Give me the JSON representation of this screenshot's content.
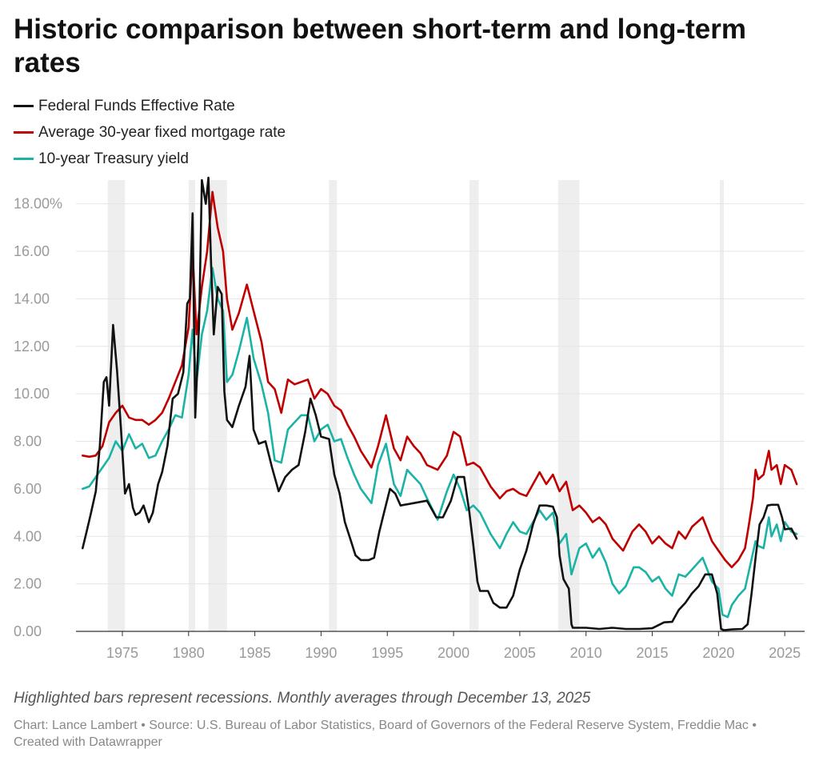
{
  "title": "Historic comparison between short-term and long-term rates",
  "notes": "Highlighted bars represent recessions. Monthly averages through December 13, 2025",
  "credits": "Chart: Lance Lambert • Source: U.S. Bureau of Labor Statistics, Board of Governors of the Federal Reserve System, Freddie Mac • Created with Datawrapper",
  "colors": {
    "fed_funds": "#111111",
    "mortgage": "#c00000",
    "treasury": "#1ab3a6",
    "recession": "#eeeeee",
    "grid": "#e5e5e5"
  },
  "chart_data": {
    "type": "line",
    "title": "Historic comparison between short-term and long-term rates",
    "xlabel": "",
    "ylabel": "",
    "xlim": [
      1971.5,
      2026.5
    ],
    "ylim": [
      0,
      19
    ],
    "y_ticks": [
      0,
      2,
      4,
      6,
      8,
      10,
      12,
      14,
      16,
      18
    ],
    "y_tick_labels": [
      "0.00",
      "2.00",
      "4.00",
      "6.00",
      "8.00",
      "10.00",
      "12.00",
      "14.00",
      "16.00",
      "18.00%"
    ],
    "x_ticks": [
      1975,
      1980,
      1985,
      1990,
      1995,
      2000,
      2005,
      2010,
      2015,
      2020,
      2025
    ],
    "x_tick_labels": [
      "1975",
      "1980",
      "1985",
      "1990",
      "1995",
      "2000",
      "2005",
      "2010",
      "2015",
      "2020",
      "2025"
    ],
    "recessions": [
      [
        1973.9,
        1975.2
      ],
      [
        1980.0,
        1980.5
      ],
      [
        1981.5,
        1982.9
      ],
      [
        1990.6,
        1991.2
      ],
      [
        2001.2,
        2001.9
      ],
      [
        2007.9,
        2009.5
      ],
      [
        2020.1,
        2020.4
      ]
    ],
    "legend_position": "top-left",
    "series": [
      {
        "name": "Federal Funds Effective Rate",
        "color": "#111111",
        "x": [
          1972.0,
          1972.3,
          1972.6,
          1973.0,
          1973.3,
          1973.6,
          1973.8,
          1974.0,
          1974.3,
          1974.6,
          1974.9,
          1975.2,
          1975.5,
          1975.8,
          1976.0,
          1976.3,
          1976.6,
          1977.0,
          1977.3,
          1977.7,
          1978.0,
          1978.4,
          1978.8,
          1979.2,
          1979.6,
          1979.9,
          1980.1,
          1980.3,
          1980.5,
          1980.8,
          1981.0,
          1981.3,
          1981.5,
          1981.7,
          1981.9,
          1982.2,
          1982.5,
          1982.7,
          1982.9,
          1983.3,
          1983.8,
          1984.3,
          1984.6,
          1984.9,
          1985.3,
          1985.8,
          1986.3,
          1986.8,
          1987.3,
          1987.8,
          1988.3,
          1988.8,
          1989.2,
          1989.6,
          1990.0,
          1990.6,
          1991.0,
          1991.4,
          1991.8,
          1992.2,
          1992.6,
          1993.0,
          1993.6,
          1994.0,
          1994.4,
          1994.8,
          1995.2,
          1995.6,
          1996.0,
          1997.0,
          1998.0,
          1998.7,
          1999.2,
          1999.8,
          2000.3,
          2000.8,
          2001.2,
          2001.5,
          2001.8,
          2002.0,
          2002.6,
          2003.0,
          2003.5,
          2004.0,
          2004.5,
          2005.0,
          2005.5,
          2006.0,
          2006.5,
          2007.0,
          2007.5,
          2007.8,
          2008.0,
          2008.3,
          2008.7,
          2008.9,
          2009.0,
          2010.0,
          2011.0,
          2012.0,
          2013.0,
          2014.0,
          2015.0,
          2015.9,
          2016.5,
          2017.0,
          2017.5,
          2018.0,
          2018.5,
          2019.0,
          2019.5,
          2019.9,
          2020.2,
          2020.4,
          2021.0,
          2021.8,
          2022.2,
          2022.5,
          2022.8,
          2023.1,
          2023.4,
          2023.7,
          2024.0,
          2024.5,
          2024.8,
          2025.0,
          2025.5,
          2025.9
        ],
        "values": [
          3.5,
          4.2,
          4.9,
          5.9,
          7.8,
          10.5,
          10.7,
          9.5,
          12.9,
          11.0,
          8.5,
          5.8,
          6.2,
          5.2,
          4.9,
          5.0,
          5.3,
          4.6,
          5.0,
          6.2,
          6.7,
          7.8,
          9.8,
          10.0,
          10.9,
          13.8,
          14.0,
          17.6,
          9.0,
          13.0,
          19.0,
          18.0,
          19.1,
          15.5,
          12.5,
          14.5,
          14.2,
          10.1,
          8.9,
          8.6,
          9.5,
          10.3,
          11.6,
          8.5,
          7.9,
          8.0,
          6.9,
          5.9,
          6.5,
          6.8,
          7.0,
          8.4,
          9.8,
          9.1,
          8.2,
          8.1,
          6.6,
          5.8,
          4.6,
          3.9,
          3.2,
          3.0,
          3.0,
          3.1,
          4.2,
          5.1,
          6.0,
          5.8,
          5.3,
          5.4,
          5.5,
          4.8,
          4.8,
          5.5,
          6.5,
          6.5,
          5.0,
          3.6,
          2.1,
          1.7,
          1.7,
          1.2,
          1.0,
          1.0,
          1.5,
          2.6,
          3.4,
          4.5,
          5.3,
          5.3,
          5.25,
          4.8,
          3.2,
          2.2,
          1.8,
          0.3,
          0.15,
          0.15,
          0.1,
          0.15,
          0.1,
          0.1,
          0.13,
          0.38,
          0.4,
          0.9,
          1.2,
          1.6,
          1.9,
          2.4,
          2.4,
          1.6,
          0.1,
          0.05,
          0.08,
          0.1,
          0.3,
          1.6,
          3.1,
          4.5,
          4.8,
          5.3,
          5.33,
          5.33,
          4.8,
          4.3,
          4.33,
          3.9
        ]
      },
      {
        "name": "Average 30-year fixed mortgage rate",
        "color": "#c00000",
        "x": [
          1972.0,
          1972.5,
          1973.0,
          1973.5,
          1974.0,
          1974.5,
          1975.0,
          1975.5,
          1976.0,
          1976.5,
          1977.0,
          1977.5,
          1978.0,
          1978.5,
          1979.0,
          1979.5,
          1980.0,
          1980.3,
          1980.6,
          1981.0,
          1981.4,
          1981.8,
          1982.2,
          1982.6,
          1982.9,
          1983.3,
          1983.8,
          1984.4,
          1984.9,
          1985.5,
          1986.0,
          1986.5,
          1987.0,
          1987.5,
          1988.0,
          1988.5,
          1989.0,
          1989.5,
          1990.0,
          1990.5,
          1991.0,
          1991.5,
          1992.0,
          1992.5,
          1993.0,
          1993.8,
          1994.3,
          1994.9,
          1995.5,
          1996.0,
          1996.5,
          1997.0,
          1997.5,
          1998.0,
          1998.8,
          1999.5,
          2000.0,
          2000.5,
          2001.0,
          2001.5,
          2002.0,
          2002.8,
          2003.5,
          2004.0,
          2004.5,
          2005.0,
          2005.5,
          2006.0,
          2006.5,
          2007.0,
          2007.5,
          2008.0,
          2008.5,
          2009.0,
          2009.5,
          2010.0,
          2010.5,
          2011.0,
          2011.5,
          2012.0,
          2012.8,
          2013.5,
          2014.0,
          2014.5,
          2015.0,
          2015.5,
          2016.0,
          2016.5,
          2017.0,
          2017.5,
          2018.0,
          2018.8,
          2019.5,
          2020.0,
          2020.5,
          2021.0,
          2021.5,
          2022.0,
          2022.3,
          2022.6,
          2022.8,
          2023.0,
          2023.4,
          2023.8,
          2024.0,
          2024.4,
          2024.7,
          2025.0,
          2025.5,
          2025.9
        ],
        "values": [
          7.4,
          7.35,
          7.4,
          7.8,
          8.8,
          9.2,
          9.5,
          9.0,
          8.9,
          8.9,
          8.7,
          8.9,
          9.2,
          9.8,
          10.5,
          11.2,
          12.8,
          16.0,
          12.5,
          14.5,
          16.0,
          18.5,
          17.0,
          16.0,
          14.0,
          12.7,
          13.4,
          14.6,
          13.5,
          12.2,
          10.5,
          10.2,
          9.2,
          10.6,
          10.4,
          10.5,
          10.6,
          9.8,
          10.2,
          10.0,
          9.5,
          9.3,
          8.7,
          8.2,
          7.6,
          6.9,
          7.8,
          9.1,
          7.7,
          7.2,
          8.2,
          7.8,
          7.5,
          7.0,
          6.8,
          7.4,
          8.4,
          8.2,
          7.0,
          7.1,
          6.9,
          6.1,
          5.6,
          5.9,
          6.0,
          5.8,
          5.7,
          6.2,
          6.7,
          6.2,
          6.6,
          5.9,
          6.3,
          5.1,
          5.3,
          5.0,
          4.6,
          4.8,
          4.5,
          3.9,
          3.4,
          4.2,
          4.5,
          4.2,
          3.7,
          4.0,
          3.7,
          3.5,
          4.2,
          3.9,
          4.4,
          4.8,
          3.8,
          3.4,
          3.0,
          2.7,
          3.0,
          3.5,
          4.5,
          5.6,
          6.8,
          6.4,
          6.6,
          7.6,
          6.8,
          7.0,
          6.2,
          7.0,
          6.8,
          6.2
        ]
      },
      {
        "name": "10-year Treasury yield",
        "color": "#1ab3a6",
        "x": [
          1972.0,
          1972.5,
          1973.0,
          1973.5,
          1974.0,
          1974.5,
          1975.0,
          1975.5,
          1976.0,
          1976.5,
          1977.0,
          1977.5,
          1978.0,
          1978.5,
          1979.0,
          1979.5,
          1980.0,
          1980.3,
          1980.6,
          1981.0,
          1981.4,
          1981.8,
          1982.2,
          1982.6,
          1982.9,
          1983.3,
          1983.8,
          1984.4,
          1984.9,
          1985.5,
          1986.0,
          1986.5,
          1987.0,
          1987.5,
          1988.0,
          1988.5,
          1989.0,
          1989.5,
          1990.0,
          1990.5,
          1991.0,
          1991.5,
          1992.0,
          1992.5,
          1993.0,
          1993.8,
          1994.3,
          1994.9,
          1995.5,
          1996.0,
          1996.5,
          1997.0,
          1997.5,
          1998.0,
          1998.8,
          1999.5,
          2000.0,
          2000.5,
          2001.0,
          2001.5,
          2002.0,
          2002.8,
          2003.5,
          2004.0,
          2004.5,
          2005.0,
          2005.5,
          2006.0,
          2006.5,
          2007.0,
          2007.5,
          2008.0,
          2008.5,
          2008.9,
          2009.5,
          2010.0,
          2010.5,
          2011.0,
          2011.5,
          2012.0,
          2012.5,
          2013.0,
          2013.6,
          2014.0,
          2014.5,
          2015.0,
          2015.5,
          2016.0,
          2016.5,
          2017.0,
          2017.5,
          2018.0,
          2018.8,
          2019.5,
          2020.0,
          2020.3,
          2020.7,
          2021.0,
          2021.5,
          2022.0,
          2022.4,
          2022.8,
          2023.0,
          2023.4,
          2023.8,
          2024.0,
          2024.4,
          2024.7,
          2025.0,
          2025.5,
          2025.9
        ],
        "values": [
          6.0,
          6.1,
          6.5,
          6.9,
          7.3,
          8.0,
          7.6,
          8.3,
          7.7,
          7.9,
          7.3,
          7.4,
          8.0,
          8.5,
          9.1,
          9.0,
          10.8,
          12.7,
          10.5,
          12.5,
          13.5,
          15.3,
          14.0,
          13.5,
          10.5,
          10.8,
          11.8,
          13.2,
          11.5,
          10.4,
          9.2,
          7.2,
          7.1,
          8.5,
          8.8,
          9.1,
          9.1,
          8.0,
          8.5,
          8.7,
          8.0,
          8.1,
          7.3,
          6.6,
          6.0,
          5.4,
          7.0,
          7.9,
          6.2,
          5.7,
          6.8,
          6.5,
          6.2,
          5.6,
          4.7,
          5.9,
          6.6,
          6.0,
          5.1,
          5.3,
          5.0,
          4.1,
          3.5,
          4.1,
          4.6,
          4.2,
          4.1,
          4.6,
          5.1,
          4.7,
          5.0,
          3.7,
          4.1,
          2.4,
          3.5,
          3.7,
          3.1,
          3.5,
          2.9,
          2.0,
          1.6,
          1.9,
          2.7,
          2.7,
          2.5,
          2.1,
          2.3,
          1.8,
          1.5,
          2.4,
          2.3,
          2.6,
          3.1,
          2.1,
          1.8,
          0.7,
          0.6,
          1.1,
          1.5,
          1.8,
          2.8,
          3.8,
          3.6,
          3.5,
          4.8,
          4.0,
          4.5,
          3.8,
          4.6,
          4.2,
          4.1
        ]
      }
    ]
  }
}
